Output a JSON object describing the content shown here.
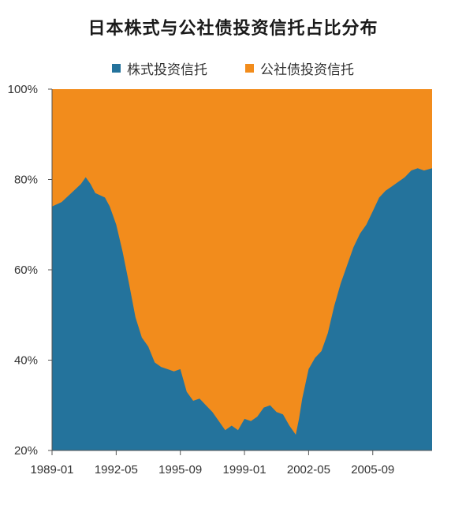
{
  "chart_data": {
    "type": "area",
    "stacked": true,
    "normalized_percent": true,
    "title": "日本株式与公社债投资信托占比分布",
    "legend": {
      "placement": "top-center"
    },
    "grid": false,
    "series": [
      {
        "name": "株式投资信托",
        "color": "#24739c"
      },
      {
        "name": "公社债投资信托",
        "color": "#f28c1c"
      }
    ],
    "x_tick_labels": [
      "1989-01",
      "1992-05",
      "1995-09",
      "1999-01",
      "2002-05",
      "2005-09"
    ],
    "xlim": [
      "1989-01",
      "2008-10"
    ],
    "ylim": [
      20,
      100
    ],
    "y_tick_labels": [
      "20%",
      "40%",
      "60%",
      "80%",
      "100%"
    ],
    "y_ticks": [
      20,
      40,
      60,
      80,
      100
    ],
    "points": [
      [
        "1989-01",
        74.0
      ],
      [
        "1989-07",
        75.0
      ],
      [
        "1990-01",
        77.0
      ],
      [
        "1990-07",
        79.0
      ],
      [
        "1990-10",
        80.5
      ],
      [
        "1991-01",
        79.0
      ],
      [
        "1991-04",
        77.0
      ],
      [
        "1991-10",
        76.0
      ],
      [
        "1992-01",
        74.0
      ],
      [
        "1992-05",
        70.0
      ],
      [
        "1992-09",
        64.0
      ],
      [
        "1993-01",
        57.0
      ],
      [
        "1993-05",
        49.5
      ],
      [
        "1993-09",
        45.0
      ],
      [
        "1994-01",
        43.0
      ],
      [
        "1994-05",
        39.5
      ],
      [
        "1994-09",
        38.5
      ],
      [
        "1995-01",
        38.0
      ],
      [
        "1995-05",
        37.5
      ],
      [
        "1995-09",
        38.0
      ],
      [
        "1996-01",
        33.0
      ],
      [
        "1996-05",
        31.0
      ],
      [
        "1996-09",
        31.5
      ],
      [
        "1997-01",
        30.0
      ],
      [
        "1997-05",
        28.5
      ],
      [
        "1997-09",
        26.5
      ],
      [
        "1998-01",
        24.5
      ],
      [
        "1998-05",
        25.5
      ],
      [
        "1998-09",
        24.5
      ],
      [
        "1999-01",
        27.0
      ],
      [
        "1999-05",
        26.5
      ],
      [
        "1999-09",
        27.5
      ],
      [
        "2000-01",
        29.5
      ],
      [
        "2000-05",
        30.0
      ],
      [
        "2000-09",
        28.5
      ],
      [
        "2001-01",
        28.0
      ],
      [
        "2001-05",
        25.5
      ],
      [
        "2001-09",
        23.5
      ],
      [
        "2001-11",
        27.0
      ],
      [
        "2002-01",
        31.5
      ],
      [
        "2002-05",
        38.0
      ],
      [
        "2002-09",
        40.5
      ],
      [
        "2003-01",
        42.0
      ],
      [
        "2003-05",
        46.0
      ],
      [
        "2003-09",
        52.0
      ],
      [
        "2004-01",
        57.0
      ],
      [
        "2004-05",
        61.0
      ],
      [
        "2004-09",
        65.0
      ],
      [
        "2005-01",
        68.0
      ],
      [
        "2005-05",
        70.0
      ],
      [
        "2005-09",
        73.0
      ],
      [
        "2006-01",
        76.0
      ],
      [
        "2006-05",
        77.5
      ],
      [
        "2006-09",
        78.5
      ],
      [
        "2007-01",
        79.5
      ],
      [
        "2007-05",
        80.5
      ],
      [
        "2007-09",
        82.0
      ],
      [
        "2008-01",
        82.5
      ],
      [
        "2008-05",
        82.0
      ],
      [
        "2008-10",
        82.5
      ]
    ]
  }
}
